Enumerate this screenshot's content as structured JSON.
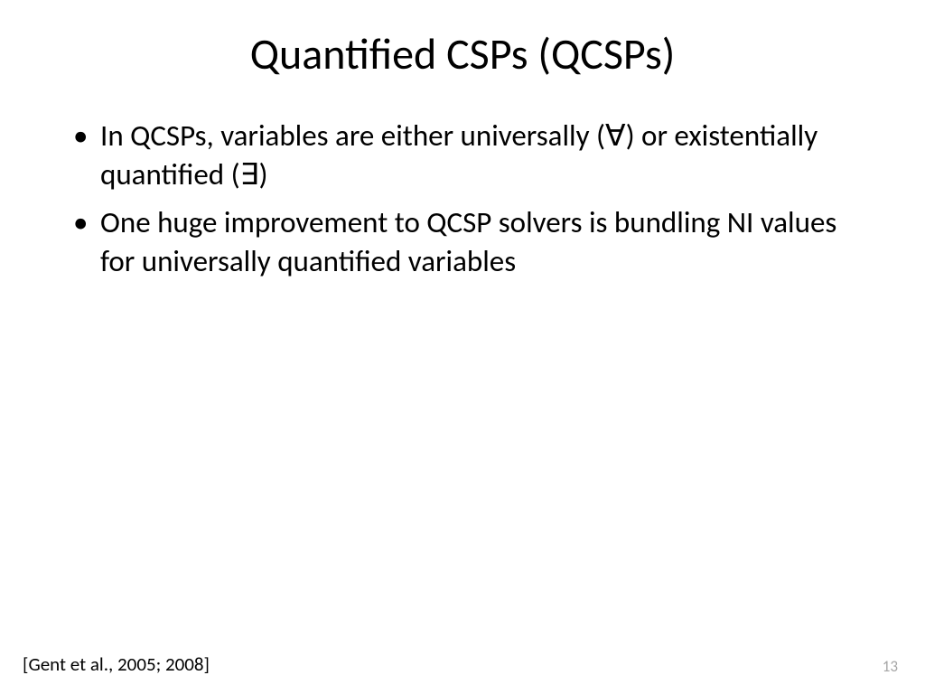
{
  "slide": {
    "title": "Quantified CSPs (QCSPs)",
    "bullets": [
      "In QCSPs, variables are either universally (∀) or existentially quantified (∃)",
      "One huge improvement to QCSP solvers is bundling NI values for universally quantified variables"
    ],
    "citation": "[Gent et al., 2005; 2008]",
    "page_number": "13"
  },
  "style": {
    "background_color": "#ffffff",
    "title_fontsize": 48,
    "body_fontsize": 33,
    "citation_fontsize": 21,
    "pagenum_fontsize": 17,
    "pagenum_color": "#a6a6a6",
    "text_color": "#000000",
    "font_family": "Calibri"
  }
}
